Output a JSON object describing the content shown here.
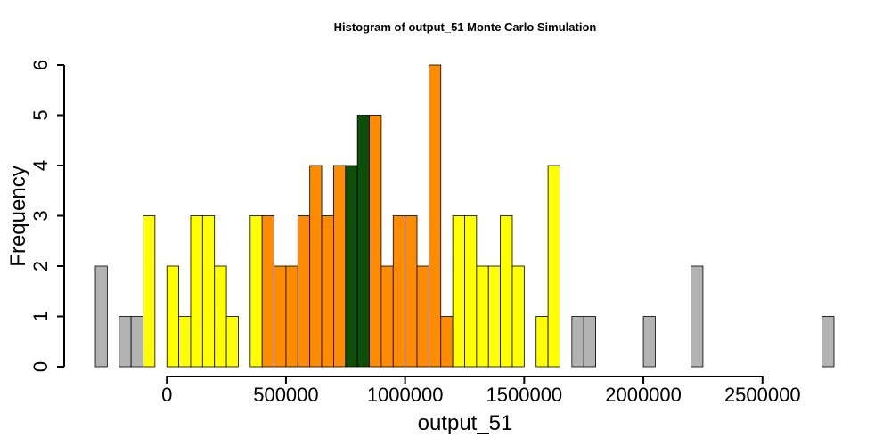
{
  "chart_data": {
    "type": "bar",
    "title": "Histogram of  output_51  Monte Carlo Simulation",
    "xlabel": "output_51",
    "ylabel": "Frequency",
    "bin_start": -300000,
    "bin_width": 50000,
    "xlim": [
      -300000,
      2800000
    ],
    "ylim": [
      0,
      6
    ],
    "xticks": [
      {
        "value": 0,
        "label": "0"
      },
      {
        "value": 500000,
        "label": "500000"
      },
      {
        "value": 1000000,
        "label": "1000000"
      },
      {
        "value": 1500000,
        "label": "1500000"
      },
      {
        "value": 2000000,
        "label": "2000000"
      },
      {
        "value": 2500000,
        "label": "2500000"
      }
    ],
    "yticks": [
      {
        "value": 0,
        "label": "0"
      },
      {
        "value": 1,
        "label": "1"
      },
      {
        "value": 2,
        "label": "2"
      },
      {
        "value": 3,
        "label": "3"
      },
      {
        "value": 4,
        "label": "4"
      },
      {
        "value": 5,
        "label": "5"
      },
      {
        "value": 6,
        "label": "6"
      }
    ],
    "colors": {
      "grey": "#b3b3b3",
      "yellow": "#ffff00",
      "orange": "#ff8c00",
      "green": "#0e4d0a"
    },
    "frequencies": [
      2,
      0,
      1,
      1,
      3,
      0,
      2,
      1,
      3,
      3,
      2,
      1,
      0,
      3,
      3,
      2,
      2,
      3,
      4,
      3,
      4,
      4,
      5,
      5,
      2,
      3,
      3,
      2,
      6,
      1,
      3,
      3,
      2,
      2,
      3,
      2,
      0,
      1,
      4,
      0,
      1,
      1,
      0,
      0,
      0,
      0,
      1,
      0,
      0,
      0,
      2,
      0,
      0,
      0,
      0,
      0,
      0,
      0,
      0,
      0,
      0,
      1
    ],
    "bin_colors": [
      "grey",
      "grey",
      "grey",
      "grey",
      "yellow",
      "yellow",
      "yellow",
      "yellow",
      "yellow",
      "yellow",
      "yellow",
      "yellow",
      "yellow",
      "yellow",
      "orange",
      "orange",
      "orange",
      "orange",
      "orange",
      "orange",
      "orange",
      "green",
      "green",
      "orange",
      "orange",
      "orange",
      "orange",
      "orange",
      "orange",
      "orange",
      "yellow",
      "yellow",
      "yellow",
      "yellow",
      "yellow",
      "yellow",
      "yellow",
      "yellow",
      "yellow",
      "grey",
      "grey",
      "grey",
      "grey",
      "grey",
      "grey",
      "grey",
      "grey",
      "grey",
      "grey",
      "grey",
      "grey",
      "grey",
      "grey",
      "grey",
      "grey",
      "grey",
      "grey",
      "grey",
      "grey",
      "grey",
      "grey",
      "grey"
    ]
  }
}
